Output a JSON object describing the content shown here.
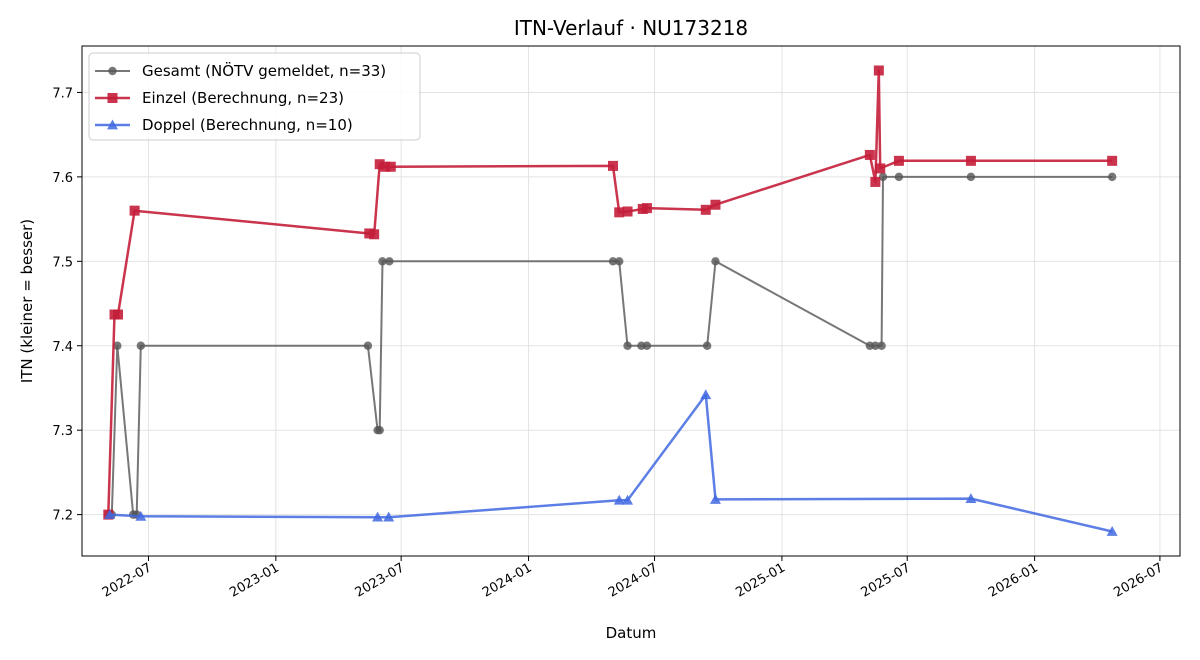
{
  "chart_data": {
    "type": "line",
    "title": "ITN-Verlauf · NU173218",
    "xlabel": "Datum",
    "ylabel": "ITN  (kleiner = besser)",
    "x_axis_type": "date",
    "xlim": [
      "2022-03-27",
      "2026-07-30"
    ],
    "ylim": [
      7.151,
      7.755
    ],
    "x_ticks": [
      "2022-07-01",
      "2023-01-01",
      "2023-07-01",
      "2024-01-01",
      "2024-07-01",
      "2025-01-01",
      "2025-07-01",
      "2026-01-01",
      "2026-07-01"
    ],
    "x_tick_labels": [
      "2022-07",
      "2023-01",
      "2023-07",
      "2024-01",
      "2024-07",
      "2025-01",
      "2025-07",
      "2026-01",
      "2026-07"
    ],
    "y_ticks": [
      7.2,
      7.3,
      7.4,
      7.5,
      7.6,
      7.7
    ],
    "y_tick_labels": [
      "7.2",
      "7.3",
      "7.4",
      "7.5",
      "7.6",
      "7.7"
    ],
    "grid": true,
    "legend_position": "top-left",
    "series": [
      {
        "name": "Gesamt (NÖTV gemeldet, n=33)",
        "color": "#555555",
        "marker": "circle",
        "points": [
          [
            "2022-05-04",
            7.2
          ],
          [
            "2022-05-09",
            7.2
          ],
          [
            "2022-05-17",
            7.4
          ],
          [
            "2022-06-09",
            7.2
          ],
          [
            "2022-06-14",
            7.2
          ],
          [
            "2022-06-20",
            7.4
          ],
          [
            "2023-05-14",
            7.4
          ],
          [
            "2023-05-28",
            7.3
          ],
          [
            "2023-05-31",
            7.3
          ],
          [
            "2023-06-04",
            7.5
          ],
          [
            "2023-06-14",
            7.5
          ],
          [
            "2024-05-02",
            7.5
          ],
          [
            "2024-05-11",
            7.5
          ],
          [
            "2024-05-23",
            7.4
          ],
          [
            "2024-06-12",
            7.4
          ],
          [
            "2024-06-20",
            7.4
          ],
          [
            "2024-09-15",
            7.4
          ],
          [
            "2024-09-27",
            7.5
          ],
          [
            "2025-05-08",
            7.4
          ],
          [
            "2025-05-16",
            7.4
          ],
          [
            "2025-05-25",
            7.4
          ],
          [
            "2025-05-27",
            7.6
          ],
          [
            "2025-06-19",
            7.6
          ],
          [
            "2025-10-01",
            7.6
          ],
          [
            "2026-04-23",
            7.6
          ]
        ]
      },
      {
        "name": "Einzel (Berechnung, n=23)",
        "color": "#c41e3a",
        "marker": "square",
        "points": [
          [
            "2022-05-04",
            7.2
          ],
          [
            "2022-05-13",
            7.437
          ],
          [
            "2022-05-18",
            7.437
          ],
          [
            "2022-06-11",
            7.56
          ],
          [
            "2023-05-16",
            7.533
          ],
          [
            "2023-05-23",
            7.532
          ],
          [
            "2023-05-31",
            7.615
          ],
          [
            "2023-06-08",
            7.612
          ],
          [
            "2023-06-16",
            7.612
          ],
          [
            "2024-05-02",
            7.613
          ],
          [
            "2024-05-11",
            7.558
          ],
          [
            "2024-05-23",
            7.559
          ],
          [
            "2024-06-14",
            7.562
          ],
          [
            "2024-06-20",
            7.563
          ],
          [
            "2024-09-13",
            7.561
          ],
          [
            "2024-09-27",
            7.567
          ],
          [
            "2025-05-08",
            7.626
          ],
          [
            "2025-05-16",
            7.594
          ],
          [
            "2025-05-21",
            7.726
          ],
          [
            "2025-05-23",
            7.61
          ],
          [
            "2025-06-19",
            7.619
          ],
          [
            "2025-10-01",
            7.619
          ],
          [
            "2026-04-23",
            7.619
          ]
        ]
      },
      {
        "name": "Doppel (Berechnung, n=10)",
        "color": "#4169e1",
        "marker": "triangle",
        "points": [
          [
            "2022-05-06",
            7.2
          ],
          [
            "2022-06-20",
            7.198
          ],
          [
            "2023-05-28",
            7.197
          ],
          [
            "2023-06-13",
            7.197
          ],
          [
            "2024-05-11",
            7.217
          ],
          [
            "2024-05-23",
            7.217
          ],
          [
            "2024-09-13",
            7.342
          ],
          [
            "2024-09-27",
            7.218
          ],
          [
            "2025-10-01",
            7.219
          ],
          [
            "2026-04-23",
            7.18
          ]
        ]
      }
    ]
  }
}
